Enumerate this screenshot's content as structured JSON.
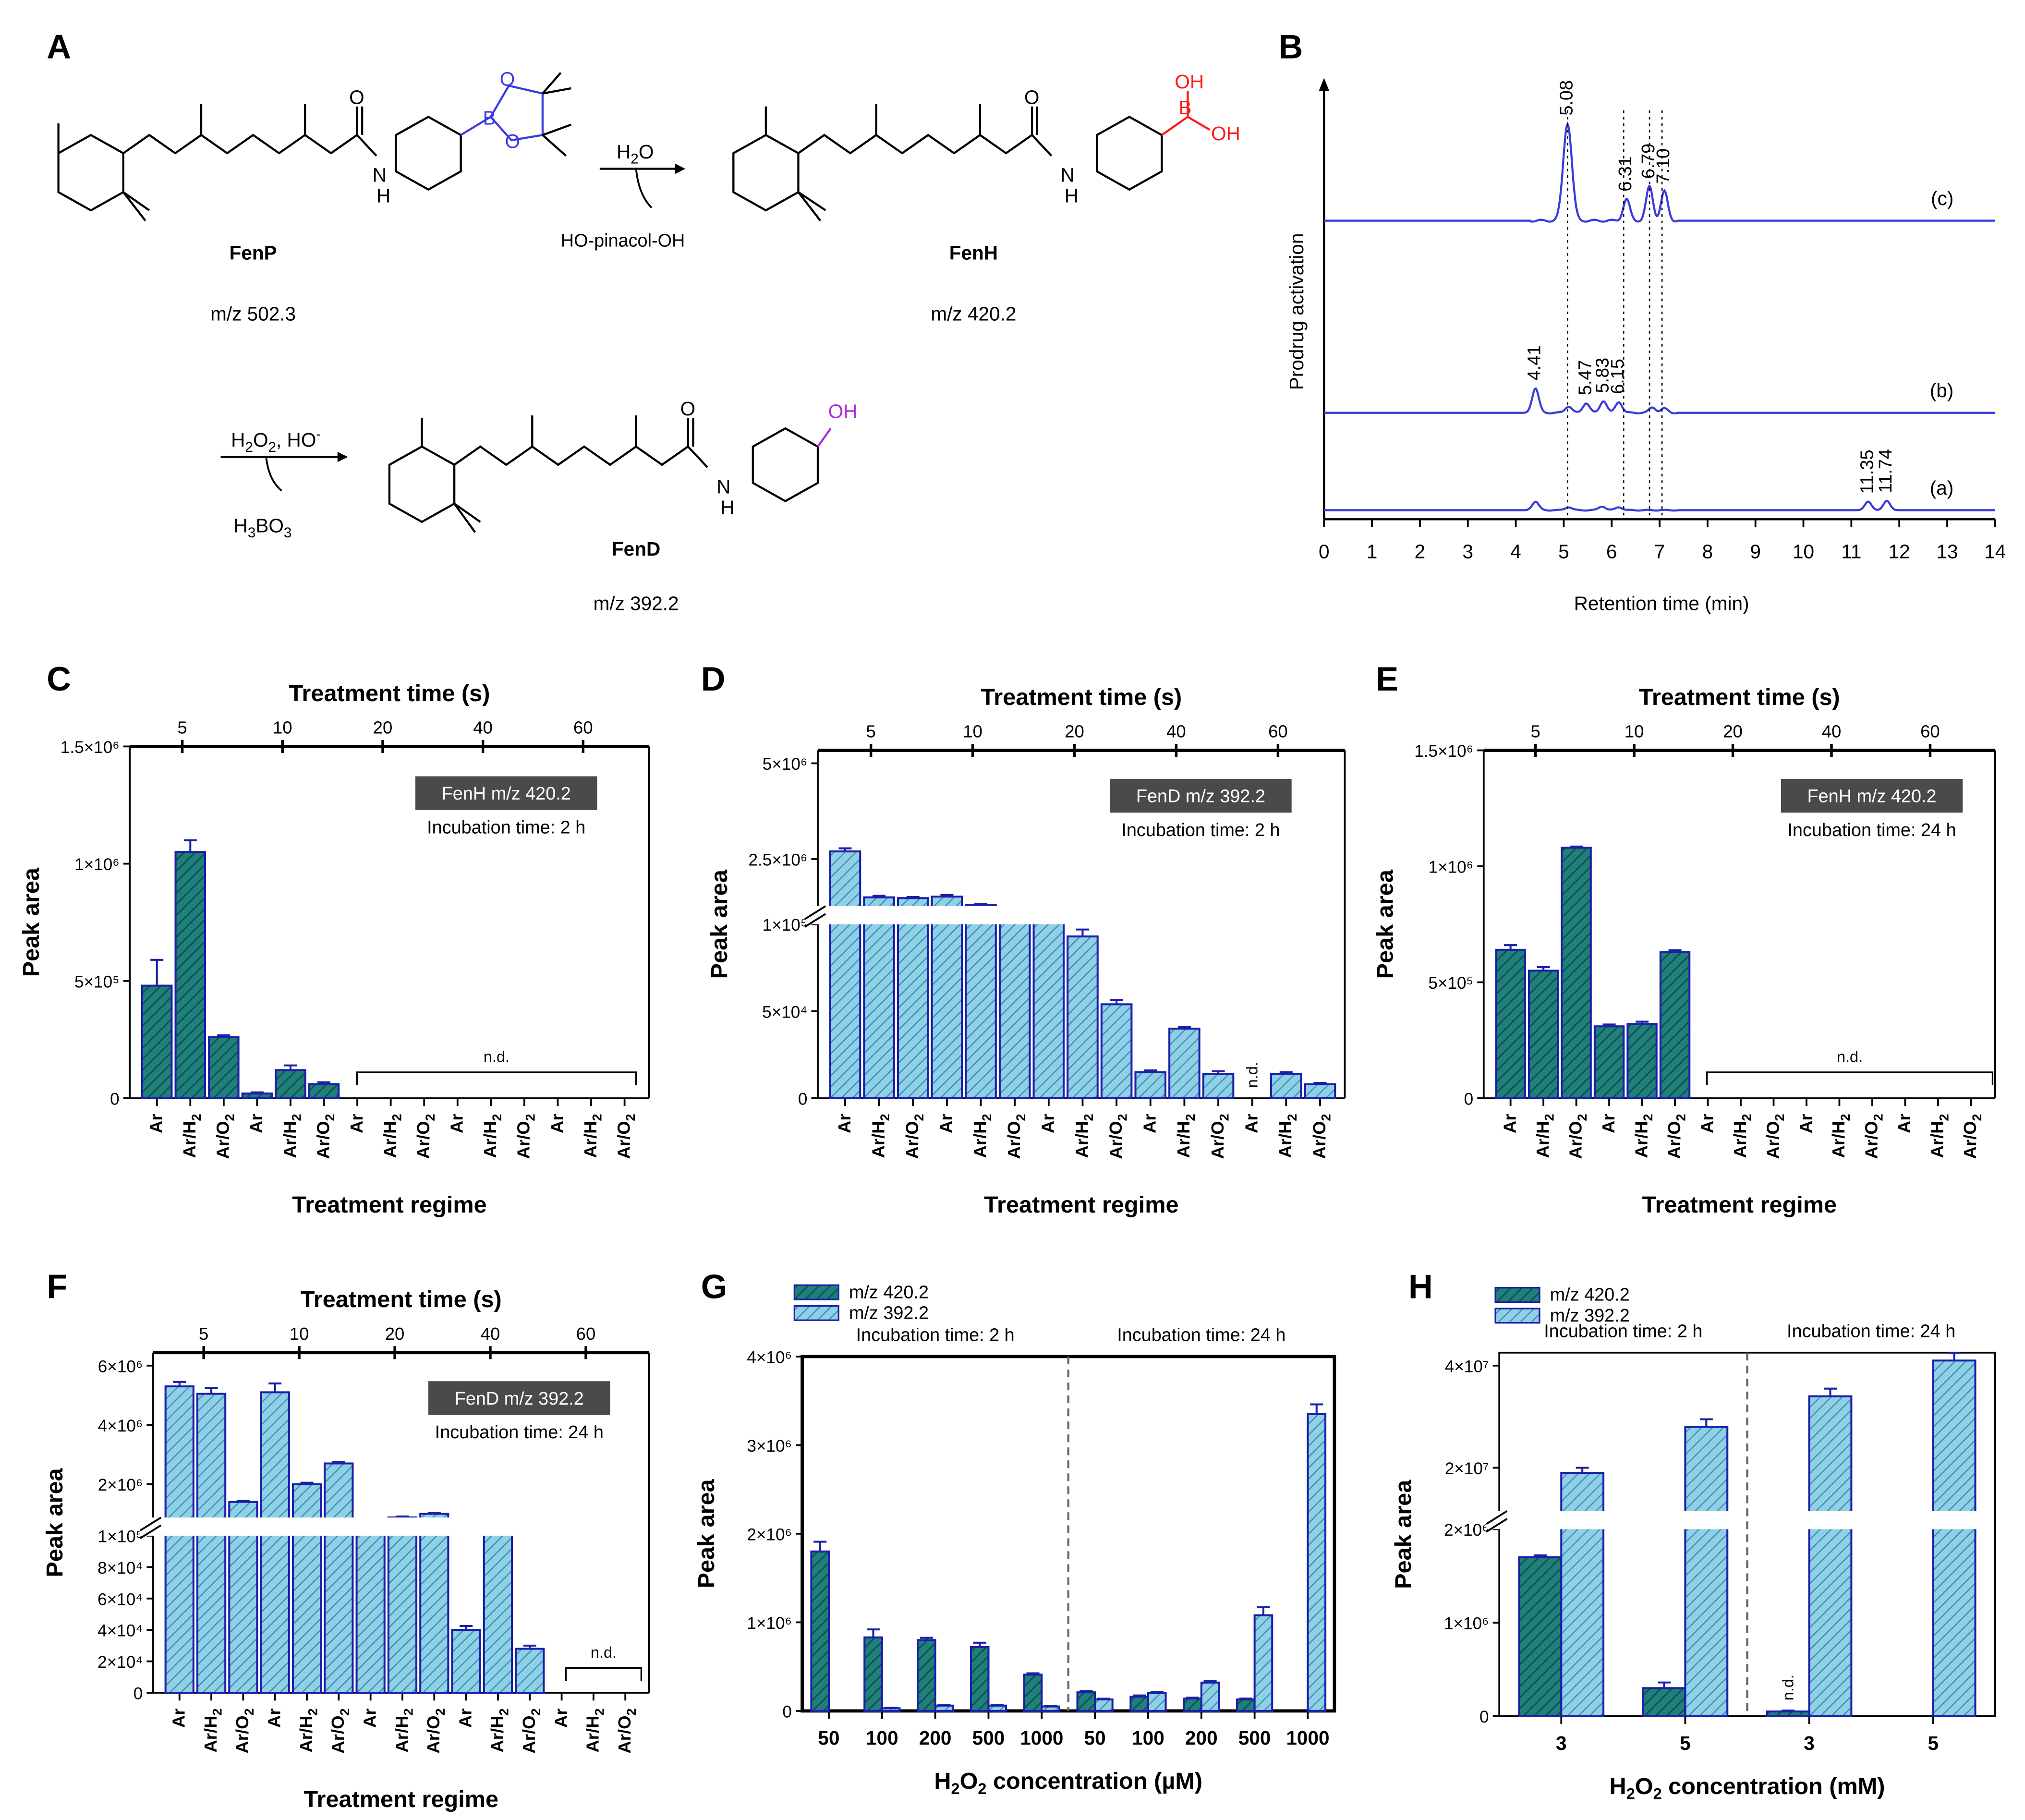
{
  "panel_letters": {
    "A": "A",
    "B": "B",
    "C": "C",
    "D": "D",
    "E": "E",
    "F": "F",
    "G": "G",
    "H": "H"
  },
  "scheme": {
    "fenp": {
      "name": "FenP",
      "mz": "m/z 502.3"
    },
    "fenh": {
      "name": "FenH",
      "mz": "m/z 420.2"
    },
    "fend": {
      "name": "FenD",
      "mz": "m/z 392.2"
    },
    "step1": {
      "reagent": "H2O",
      "byproduct": "HO-pinacol-OH"
    },
    "step2": {
      "reagent": "H2O2, HO-",
      "byproduct": "H3BO3"
    },
    "atoms": {
      "B": "B",
      "O": "O",
      "OH": "OH",
      "NH": "N",
      "H": "H"
    }
  },
  "colors": {
    "dark": "#1f7f7a",
    "light": "#7fc6dc",
    "edge": "#1b1fa8",
    "trace": "#3b3bdc",
    "boron": "#3a3adf",
    "red": "#ff1a1a",
    "purple": "#b12bd6",
    "grey_box": "#4a4a4a"
  },
  "chart_data": [
    {
      "id": "B",
      "type": "line",
      "xlabel": "Retention time (min)",
      "ylabel": "Prodrug activation",
      "xlim": [
        0,
        14
      ],
      "xticks": [
        "0",
        "1",
        "2",
        "3",
        "4",
        "5",
        "6",
        "7",
        "8",
        "9",
        "10",
        "11",
        "12",
        "13",
        "14"
      ],
      "series": [
        {
          "name": "(c)",
          "peaks": [
            {
              "x": 5.08,
              "h": 1.0,
              "label": "5.08"
            },
            {
              "x": 6.31,
              "h": 0.22,
              "label": "6.31"
            },
            {
              "x": 6.79,
              "h": 0.35,
              "label": "6.79"
            },
            {
              "x": 7.1,
              "h": 0.3,
              "label": "7.10"
            }
          ]
        },
        {
          "name": "(b)",
          "peaks": [
            {
              "x": 4.41,
              "h": 0.45,
              "label": "4.41"
            },
            {
              "x": 5.1,
              "h": 0.12,
              "label": ""
            },
            {
              "x": 5.47,
              "h": 0.18,
              "label": "5.47"
            },
            {
              "x": 5.83,
              "h": 0.22,
              "label": "5.83"
            },
            {
              "x": 6.15,
              "h": 0.2,
              "label": "6.15"
            },
            {
              "x": 6.85,
              "h": 0.1,
              "label": ""
            },
            {
              "x": 7.1,
              "h": 0.08,
              "label": ""
            }
          ]
        },
        {
          "name": "(a)",
          "peaks": [
            {
              "x": 4.41,
              "h": 0.22,
              "label": ""
            },
            {
              "x": 5.1,
              "h": 0.08,
              "label": ""
            },
            {
              "x": 5.8,
              "h": 0.1,
              "label": ""
            },
            {
              "x": 6.15,
              "h": 0.08,
              "label": ""
            },
            {
              "x": 11.35,
              "h": 0.22,
              "label": "11.35"
            },
            {
              "x": 11.74,
              "h": 0.24,
              "label": "11.74"
            }
          ]
        }
      ]
    },
    {
      "id": "C",
      "type": "bar",
      "title_top": "Treatment time (s)",
      "xlabel": "Treatment regime",
      "ylabel": "Peak area",
      "top_ticks": [
        "5",
        "10",
        "20",
        "40",
        "60"
      ],
      "yticks": [
        "0",
        "5×10⁵",
        "1×10⁶",
        "1.5×10⁶"
      ],
      "ylim": [
        0,
        1500000
      ],
      "box": "FenH m/z 420.2",
      "note": "Incubation time: 2 h",
      "nd": "n.d.",
      "categories": [
        "Ar",
        "Ar/H2",
        "Ar/O2",
        "Ar",
        "Ar/H2",
        "Ar/O2",
        "Ar",
        "Ar/H2",
        "Ar/O2",
        "Ar",
        "Ar/H2",
        "Ar/O2",
        "Ar",
        "Ar/H2",
        "Ar/O2"
      ],
      "values": [
        480000,
        1050000,
        260000,
        20000,
        120000,
        60000,
        0,
        0,
        0,
        0,
        0,
        0,
        0,
        0,
        0
      ],
      "errors": [
        110000,
        50000,
        8000,
        5000,
        20000,
        8000,
        0,
        0,
        0,
        0,
        0,
        0,
        0,
        0,
        0
      ],
      "style": "dark"
    },
    {
      "id": "D",
      "type": "bar",
      "title_top": "Treatment time (s)",
      "xlabel": "Treatment regime",
      "ylabel": "Peak area",
      "top_ticks": [
        "5",
        "10",
        "20",
        "40",
        "60"
      ],
      "yticks_low": [
        "0",
        "5×10⁴",
        "1×10⁵"
      ],
      "yticks_high": [
        "2.5×10⁶",
        "5×10⁶"
      ],
      "box": "FenD m/z 392.2",
      "note": "Incubation time: 2 h",
      "nd": "n.d.",
      "categories": [
        "Ar",
        "Ar/H2",
        "Ar/O2",
        "Ar",
        "Ar/H2",
        "Ar/O2",
        "Ar",
        "Ar/H2",
        "Ar/O2",
        "Ar",
        "Ar/H2",
        "Ar/O2",
        "Ar",
        "Ar/H2",
        "Ar/O2"
      ],
      "values": [
        2700000,
        1500000,
        1480000,
        1520000,
        1300000,
        1150000,
        1050000,
        93000,
        54000,
        15000,
        40000,
        14000,
        0,
        14000,
        8000
      ],
      "errors": [
        80000,
        40000,
        30000,
        40000,
        30000,
        30000,
        30000,
        4000,
        2500,
        1000,
        1000,
        1500,
        0,
        1000,
        800
      ],
      "style": "light"
    },
    {
      "id": "E",
      "type": "bar",
      "title_top": "Treatment time (s)",
      "xlabel": "Treatment regime",
      "ylabel": "Peak area",
      "top_ticks": [
        "5",
        "10",
        "20",
        "40",
        "60"
      ],
      "yticks": [
        "0",
        "5×10⁵",
        "1×10⁶",
        "1.5×10⁶"
      ],
      "ylim": [
        0,
        1500000
      ],
      "box": "FenH m/z 420.2",
      "note": "Incubation time: 24 h",
      "nd": "n.d.",
      "categories": [
        "Ar",
        "Ar/H2",
        "Ar/O2",
        "Ar",
        "Ar/H2",
        "Ar/O2",
        "Ar",
        "Ar/H2",
        "Ar/O2",
        "Ar",
        "Ar/H2",
        "Ar/O2",
        "Ar",
        "Ar/H2",
        "Ar/O2"
      ],
      "values": [
        640000,
        550000,
        1080000,
        310000,
        320000,
        630000,
        0,
        0,
        0,
        0,
        0,
        0,
        0,
        0,
        0
      ],
      "errors": [
        20000,
        15000,
        5000,
        8000,
        10000,
        8000,
        0,
        0,
        0,
        0,
        0,
        0,
        0,
        0,
        0
      ],
      "style": "dark"
    },
    {
      "id": "F",
      "type": "bar",
      "title_top": "Treatment time (s)",
      "xlabel": "Treatment regime",
      "ylabel": "Peak area",
      "top_ticks": [
        "5",
        "10",
        "20",
        "40",
        "60"
      ],
      "yticks_low": [
        "0",
        "2×10⁴",
        "4×10⁴",
        "6×10⁴",
        "8×10⁴",
        "1×10⁵"
      ],
      "yticks_high": [
        "2×10⁶",
        "4×10⁶",
        "6×10⁶"
      ],
      "box": "FenD m/z 392.2",
      "note": "Incubation time: 24 h",
      "nd": "n.d.",
      "categories": [
        "Ar",
        "Ar/H2",
        "Ar/O2",
        "Ar",
        "Ar/H2",
        "Ar/O2",
        "Ar",
        "Ar/H2",
        "Ar/O2",
        "Ar",
        "Ar/H2",
        "Ar/O2",
        "Ar",
        "Ar/H2",
        "Ar/O2"
      ],
      "values": [
        5300000,
        5050000,
        1400000,
        5100000,
        2000000,
        2700000,
        700000,
        880000,
        1000000,
        40000,
        700000,
        28000,
        0,
        0,
        0
      ],
      "errors": [
        150000,
        200000,
        30000,
        300000,
        50000,
        40000,
        30000,
        30000,
        30000,
        2500,
        0,
        2000,
        0,
        0,
        0
      ],
      "style": "light"
    },
    {
      "id": "G",
      "type": "bar",
      "xlabel": "H2O2 concentration (µM)",
      "ylabel": "Peak area",
      "legend": [
        "m/z 420.2",
        "m/z 392.2"
      ],
      "group_titles": [
        "Incubation time: 2 h",
        "Incubation time: 24 h"
      ],
      "yticks": [
        "0",
        "1×10⁶",
        "2×10⁶",
        "3×10⁶",
        "4×10⁶"
      ],
      "ylim": [
        0,
        4000000
      ],
      "categories": [
        "50",
        "100",
        "200",
        "500",
        "1000",
        "50",
        "100",
        "200",
        "500",
        "1000"
      ],
      "series": [
        {
          "name": "m/z 420.2",
          "values": [
            1800000,
            830000,
            800000,
            720000,
            410000,
            210000,
            160000,
            140000,
            130000,
            0
          ],
          "errors": [
            110000,
            90000,
            25000,
            50000,
            15000,
            15000,
            15000,
            10000,
            10000,
            0
          ]
        },
        {
          "name": "m/z 392.2",
          "values": [
            0,
            30000,
            60000,
            60000,
            50000,
            130000,
            200000,
            320000,
            1080000,
            3350000
          ],
          "errors": [
            0,
            5000,
            5000,
            5000,
            5000,
            8000,
            15000,
            20000,
            90000,
            110000
          ]
        }
      ]
    },
    {
      "id": "H",
      "type": "bar",
      "xlabel": "H2O2 concentration (mM)",
      "ylabel": "Peak area",
      "legend": [
        "m/z 420.2",
        "m/z 392.2"
      ],
      "group_titles": [
        "Incubation time: 2 h",
        "Incubation time: 24 h"
      ],
      "yticks_low": [
        "0",
        "1×10⁶",
        "2×10⁶"
      ],
      "yticks_high": [
        "2×10⁷",
        "4×10⁷"
      ],
      "categories": [
        "3",
        "5",
        "3",
        "5"
      ],
      "nd": "n.d.",
      "series": [
        {
          "name": "m/z 420.2",
          "values": [
            1700000,
            300000,
            50000,
            0
          ],
          "errors": [
            20000,
            60000,
            10000,
            0
          ]
        },
        {
          "name": "m/z 392.2",
          "values": [
            19000000,
            28000000,
            34000000,
            41000000
          ],
          "errors": [
            1000000,
            1500000,
            1500000,
            1500000
          ]
        }
      ]
    }
  ]
}
